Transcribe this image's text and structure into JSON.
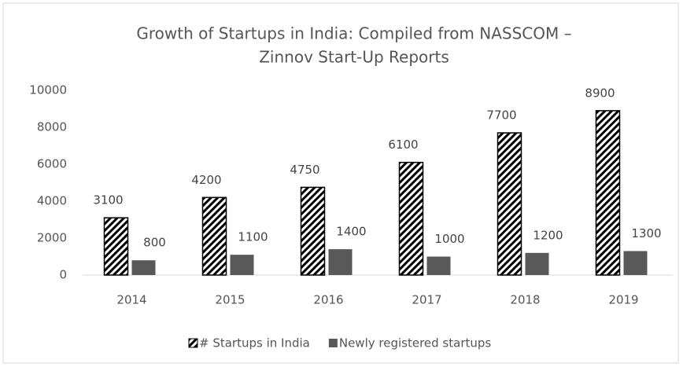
{
  "chart_data": {
    "type": "bar",
    "title": [
      "Growth of Startups in India: Compiled from NASSCOM –",
      "Zinnov Start-Up Reports"
    ],
    "categories": [
      "2014",
      "2015",
      "2016",
      "2017",
      "2018",
      "2019"
    ],
    "series": [
      {
        "name": "# Startups in India",
        "color": "#000000",
        "pattern": "hatch",
        "values": [
          3100,
          4200,
          4750,
          6100,
          7700,
          8900
        ]
      },
      {
        "name": "Newly registered startups",
        "color": "#595959",
        "values": [
          800,
          1100,
          1400,
          1000,
          1200,
          1300
        ]
      }
    ],
    "ylim": [
      0,
      10000
    ],
    "yticks": [
      0,
      2000,
      4000,
      6000,
      8000,
      10000
    ],
    "grid": false,
    "legend": "bottom"
  }
}
